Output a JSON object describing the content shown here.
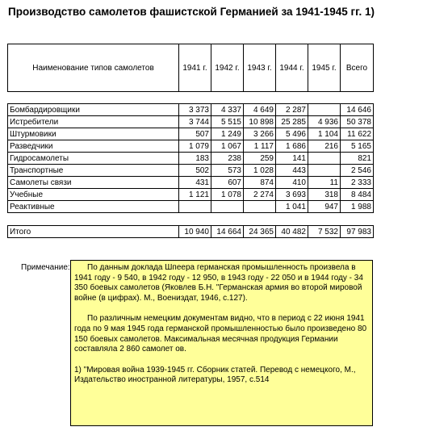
{
  "title": "Производство самолетов фашистской Германией за 1941-1945 гг.  1)",
  "table": {
    "header": {
      "name": "Наименование типов самолетов",
      "years": [
        "1941 г.",
        "1942 г.",
        "1943 г.",
        "1944 г.",
        "1945 г.",
        "Всего"
      ]
    },
    "rows": [
      {
        "name": "Бомбардировщики",
        "values": [
          "3 373",
          "4 337",
          "4 649",
          "2 287",
          "",
          "14 646"
        ]
      },
      {
        "name": "Истребители",
        "values": [
          "3 744",
          "5 515",
          "10 898",
          "25 285",
          "4 936",
          "50 378"
        ]
      },
      {
        "name": "Штурмовики",
        "values": [
          "507",
          "1 249",
          "3 266",
          "5 496",
          "1 104",
          "11 622"
        ]
      },
      {
        "name": "Разведчики",
        "values": [
          "1 079",
          "1 067",
          "1 117",
          "1 686",
          "216",
          "5 165"
        ]
      },
      {
        "name": "Гидросамолеты",
        "values": [
          "183",
          "238",
          "259",
          "141",
          "",
          "821"
        ]
      },
      {
        "name": "Транспортные",
        "values": [
          "502",
          "573",
          "1 028",
          "443",
          "",
          "2 546"
        ]
      },
      {
        "name": "Самолеты связи",
        "values": [
          "431",
          "607",
          "874",
          "410",
          "11",
          "2 333"
        ]
      },
      {
        "name": "Учебные",
        "values": [
          "1 121",
          "1 078",
          "2 274",
          "3 693",
          "318",
          "8 484"
        ]
      },
      {
        "name": "Реактивные",
        "values": [
          "",
          "",
          "",
          "1 041",
          "947",
          "1 988"
        ]
      }
    ],
    "total": {
      "name": "Итого",
      "values": [
        "10 940",
        "14 664",
        "24 365",
        "40 482",
        "7 532",
        "97 983"
      ]
    }
  },
  "note": {
    "label": "Примечание:",
    "paragraph1": "По данным доклада Шпеера германская промышленность произвела в 1941 году - 9 540, в 1942 году - 12 950, в 1943 году - 22 050 и в 1944 году - 34 350 боевых самолетов (Яковлев Б.Н. \"Германская армия во второй мировой войне (в цифрах). М., Воениздат, 1946, с.127).",
    "paragraph2": "По различным немецким документам видно, что в период с 22 июня 1941 года по 9 мая 1945 года германской промышленностью было произведено 80 150 боевых самолетов. Максимальная месячная продукция Германии составляла 2 860 самолет ов.",
    "footnote": "1) \"Мировая война 1939-1945 гг. Сборник  статей. Перевод с немецкого, М.,  Издательство иностранной литературы, 1957, с.514"
  }
}
